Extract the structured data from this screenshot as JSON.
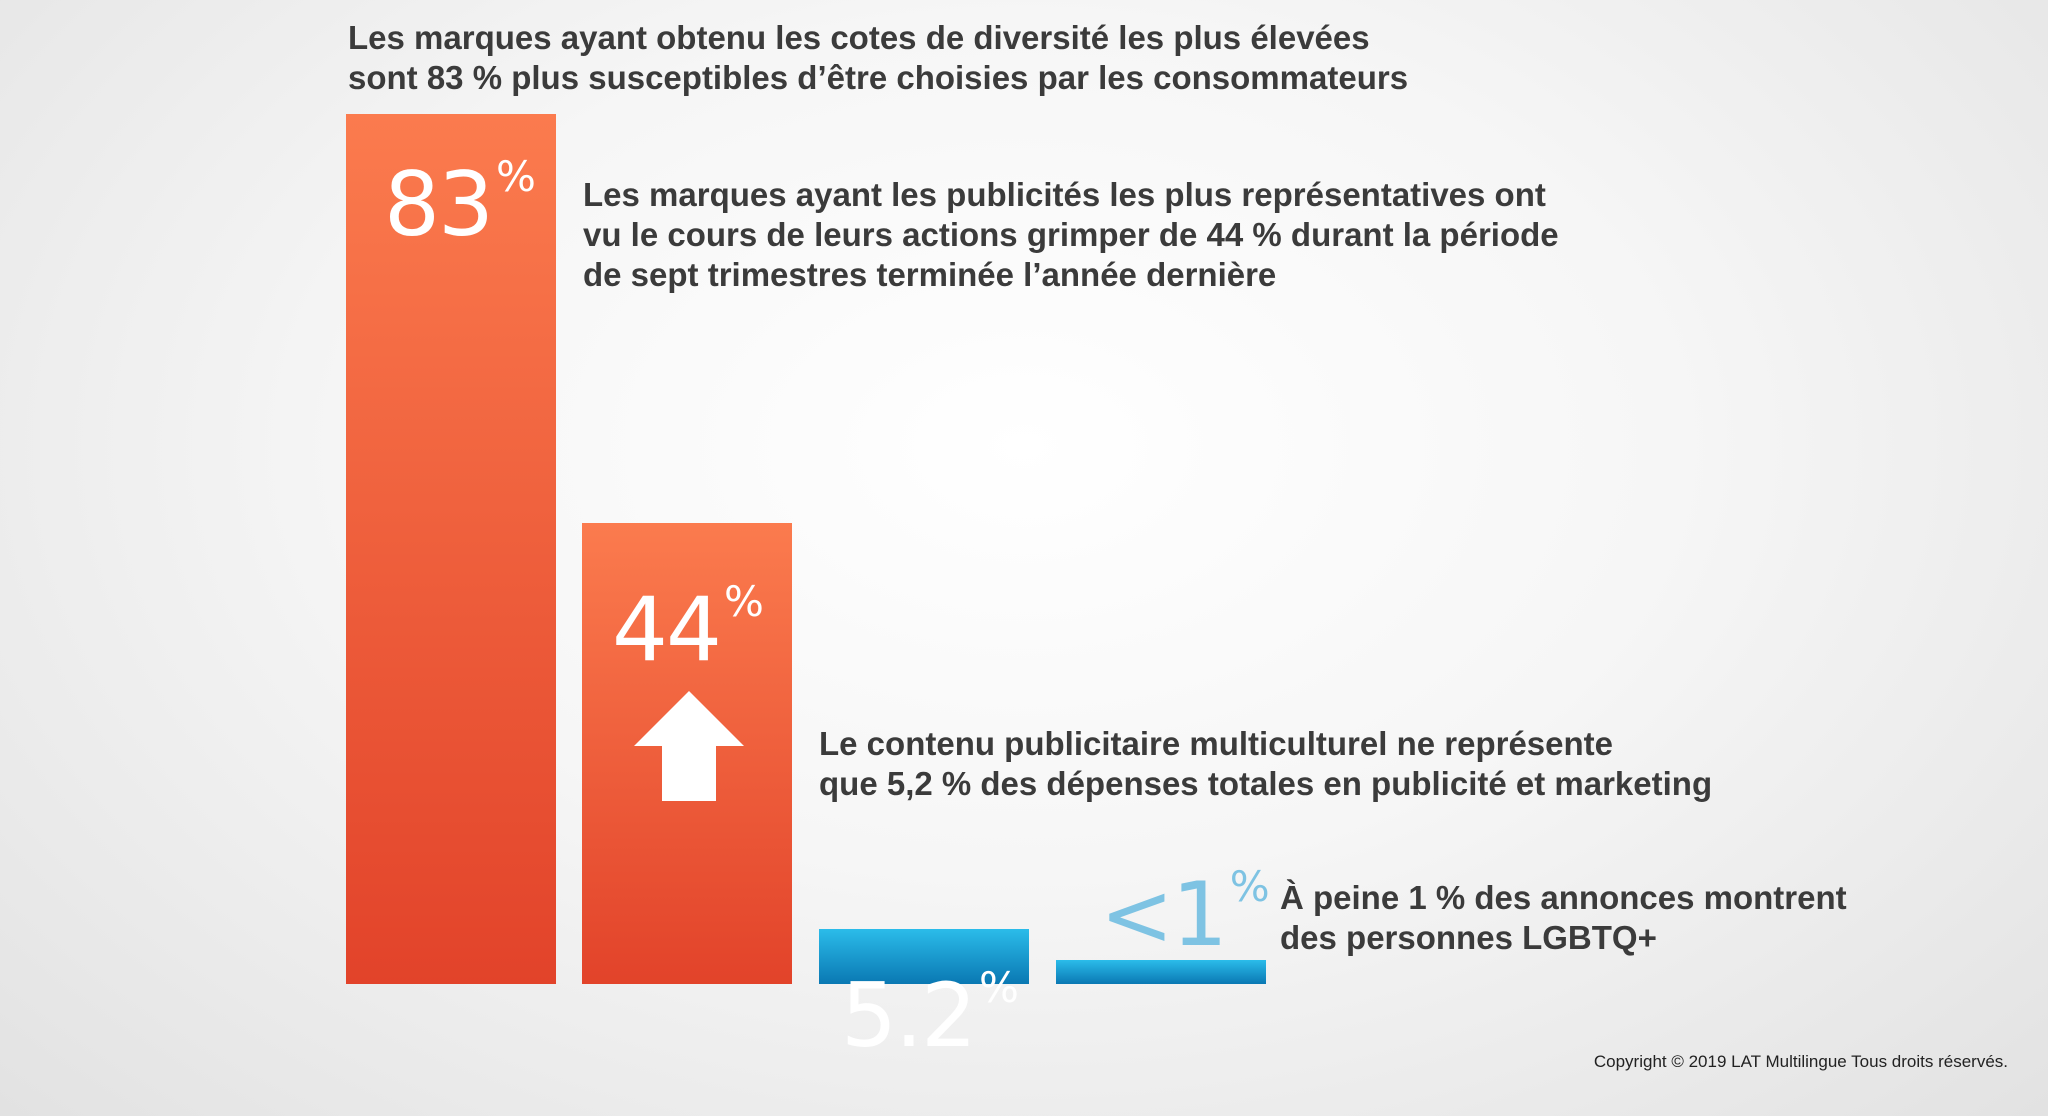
{
  "chart_data": {
    "type": "bar",
    "categories": [
      "Les marques ayant obtenu les cotes de diversité les plus élevées\nsont 83 % plus susceptibles d’être choisies par les consommateurs",
      "Les marques ayant les publicités les plus représentatives ont\nvu le cours de leurs actions grimper de 44 % durant la période\nde sept trimestres terminée l’année dernière",
      "Le contenu publicitaire multiculturel ne représente\nque 5,2 % des dépenses totales en publicité et marketing",
      "À peine 1 % des annonces montrent\ndes personnes LGBTQ+"
    ],
    "values": [
      83,
      44,
      5.2,
      1
    ],
    "value_labels": [
      "83",
      "44",
      "5.2",
      "<1"
    ],
    "value_unit": "%",
    "colors": [
      "#f0593a",
      "#f0593a",
      "#1a9fd6",
      "#1a9fd6"
    ],
    "arrow_icon": "up-arrow-icon",
    "grid": false,
    "legend": "none"
  },
  "copyright": "Copyright © 2019 LAT Multilingue Tous droits réservés."
}
